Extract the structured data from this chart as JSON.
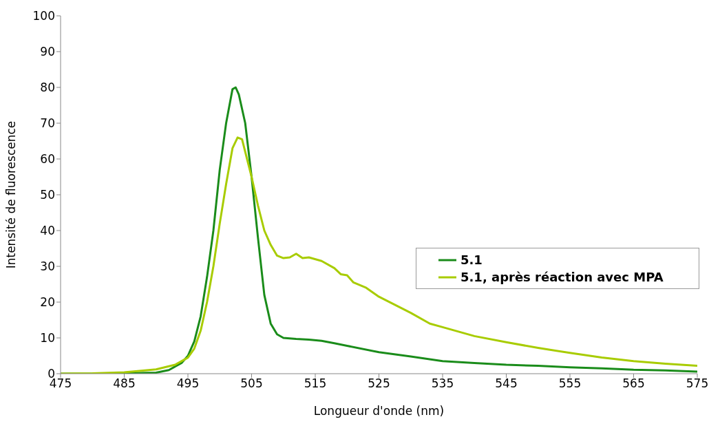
{
  "chart_data": {
    "type": "line",
    "xlabel": "Longueur d'onde (nm)",
    "ylabel": "Intensité de fluorescence",
    "xlim": [
      475,
      575
    ],
    "xticks": [
      475,
      485,
      495,
      505,
      515,
      525,
      535,
      545,
      555,
      565,
      575
    ],
    "ylim": [
      0,
      100
    ],
    "yticks": [
      0,
      10,
      20,
      30,
      40,
      50,
      60,
      70,
      80,
      90,
      100
    ],
    "grid": false,
    "legend": "right",
    "marker": "none",
    "line_style": "solid",
    "series": [
      {
        "name": "5.1",
        "color": "#1a8c1a",
        "x": [
          475,
          480,
          485,
          490,
          492,
          494,
          495,
          496,
          497,
          498,
          499,
          500,
          501,
          502,
          502.5,
          503,
          504,
          505,
          506,
          507,
          508,
          509,
          510,
          512,
          514,
          516,
          518,
          520,
          525,
          530,
          535,
          540,
          545,
          550,
          555,
          560,
          565,
          570,
          575
        ],
        "values": [
          0,
          0,
          0.1,
          0.3,
          1,
          3,
          5,
          9,
          16,
          27,
          40,
          57,
          70,
          79.5,
          80,
          78,
          70,
          55,
          38,
          22,
          14,
          11,
          10,
          9.7,
          9.5,
          9.2,
          8.5,
          7.8,
          6,
          4.8,
          3.5,
          3,
          2.5,
          2.2,
          1.8,
          1.5,
          1.1,
          0.9,
          0.6
        ]
      },
      {
        "name": "5.1, après réaction avec MPA",
        "color": "#a8cc00",
        "x": [
          475,
          480,
          485,
          490,
          493,
          495,
          496,
          497,
          498,
          499,
          500,
          501,
          502,
          502.8,
          503.5,
          504,
          505,
          506,
          507,
          508,
          509,
          510,
          511,
          512,
          513,
          514,
          516,
          518,
          519,
          520,
          521,
          523,
          525,
          530,
          533,
          535,
          540,
          545,
          550,
          555,
          560,
          565,
          570,
          575
        ],
        "values": [
          0,
          0.1,
          0.4,
          1.2,
          2.5,
          4.5,
          7,
          12,
          20,
          30,
          42,
          53,
          63,
          66,
          65.5,
          62,
          55,
          47,
          40,
          36,
          33,
          32.3,
          32.5,
          33.5,
          32.3,
          32.5,
          31.5,
          29.5,
          27.8,
          27.5,
          25.5,
          24,
          21.5,
          17,
          14,
          13,
          10.5,
          8.8,
          7.2,
          5.8,
          4.5,
          3.5,
          2.8,
          2.2
        ]
      }
    ]
  }
}
